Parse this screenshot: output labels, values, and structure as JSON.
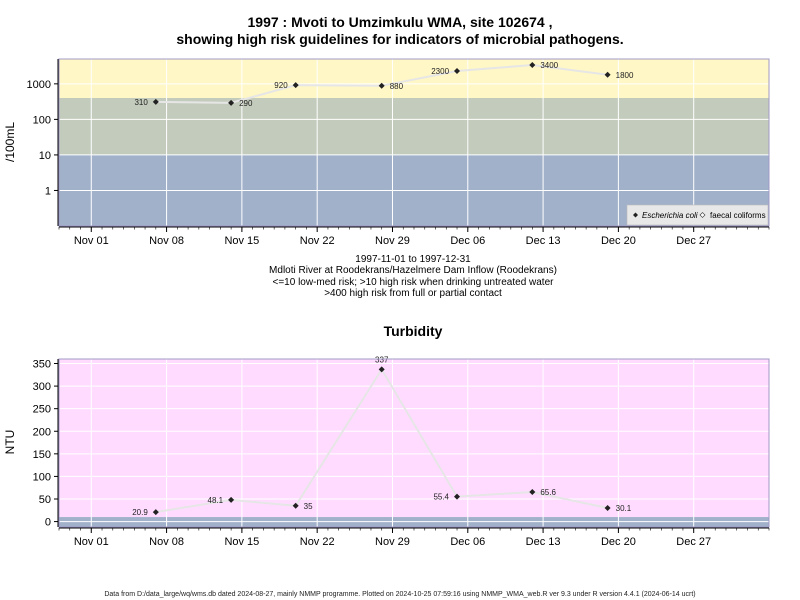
{
  "figure": {
    "title_line1": "1997 : Mvoti to Umzimkulu WMA, site 102674 ,",
    "title_line2": "showing high risk guidelines for indicators of microbial pathogens.",
    "footer": "Data from D:/data_large/wq/wms.db dated 2024-08-27, mainly NMMP programme. Plotted on 2024-10-25 07:59:16 using NMMP_WMA_web.R ver 9.3 under R version 4.4.1 (2024-06-14 ucrt)"
  },
  "colors": {
    "band_high": "#fff7c6",
    "band_mid": "#c3cbbc",
    "band_low": "#a1b1ca",
    "turbidity_bg": "#ffdcff",
    "turbidity_floor": "#a1b1ca",
    "grid": "#ffffff",
    "line": "#e6e6e6",
    "marker": "#222222",
    "plot_border": "#a098c6"
  },
  "chart_data": [
    {
      "type": "line",
      "title": "",
      "ylabel": "/100mL",
      "y_scale": "log",
      "ylim": [
        0.1,
        5000
      ],
      "y_ticks": [
        1,
        10,
        100,
        1000
      ],
      "y_tick_labels": [
        "1",
        "10",
        "100",
        "1000"
      ],
      "xlim": [
        "1997-10-29",
        "1998-01-03"
      ],
      "x_ticks": [
        "1997-11-01",
        "1997-11-08",
        "1997-11-15",
        "1997-11-22",
        "1997-11-29",
        "1997-12-06",
        "1997-12-13",
        "1997-12-20",
        "1997-12-27"
      ],
      "x_tick_labels": [
        "Nov 01",
        "Nov 08",
        "Nov 15",
        "Nov 22",
        "Nov 29",
        "Dec 06",
        "Dec 13",
        "Dec 20",
        "Dec 27"
      ],
      "risk_bands": [
        {
          "from": 0.1,
          "to": 10,
          "color": "#a1b1ca"
        },
        {
          "from": 10,
          "to": 400,
          "color": "#c3cbbc"
        },
        {
          "from": 400,
          "to": 5000,
          "color": "#fff7c6"
        }
      ],
      "series": [
        {
          "name": "Escherichia coli",
          "x": [
            "1997-11-07",
            "1997-11-14",
            "1997-11-20",
            "1997-11-28",
            "1997-12-05",
            "1997-12-12",
            "1997-12-19"
          ],
          "y": [
            310,
            290,
            920,
            880,
            2300,
            3400,
            1800
          ],
          "labels": [
            "310",
            "290",
            "920",
            "880",
            "2300",
            "3400",
            "1800"
          ],
          "label_side": [
            "left",
            "right",
            "left",
            "right",
            "left",
            "right",
            "right"
          ]
        },
        {
          "name": "faecal coliforms",
          "x": [],
          "y": []
        }
      ],
      "legend": "bottom-right",
      "notes": [
        "1997-11-01 to 1997-12-31",
        "Mdloti River at Roodekrans/Hazelmere Dam Inflow (Roodekrans)",
        "<=10 low-med risk; >10 high risk when drinking untreated water",
        ">400 high risk from full or partial contact"
      ]
    },
    {
      "type": "line",
      "title": "Turbidity",
      "ylabel": "NTU",
      "y_scale": "linear",
      "ylim": [
        -12,
        360
      ],
      "y_ticks": [
        0,
        50,
        100,
        150,
        200,
        250,
        300,
        350
      ],
      "y_tick_labels": [
        "0",
        "50",
        "100",
        "150",
        "200",
        "250",
        "300",
        "350"
      ],
      "floor_band": {
        "from": -12,
        "to": 10
      },
      "xlim": [
        "1997-10-29",
        "1998-01-03"
      ],
      "x_ticks": [
        "1997-11-01",
        "1997-11-08",
        "1997-11-15",
        "1997-11-22",
        "1997-11-29",
        "1997-12-06",
        "1997-12-13",
        "1997-12-20",
        "1997-12-27"
      ],
      "x_tick_labels": [
        "Nov 01",
        "Nov 08",
        "Nov 15",
        "Nov 22",
        "Nov 29",
        "Dec 06",
        "Dec 13",
        "Dec 20",
        "Dec 27"
      ],
      "series": [
        {
          "x": [
            "1997-11-07",
            "1997-11-14",
            "1997-11-20",
            "1997-11-28",
            "1997-12-05",
            "1997-12-12",
            "1997-12-19"
          ],
          "y": [
            20.9,
            48.1,
            35,
            337,
            55.4,
            65.6,
            30.1
          ],
          "labels": [
            "20.9",
            "48.1",
            "35",
            "337",
            "55.4",
            "65.6",
            "30.1"
          ],
          "label_side": [
            "left",
            "left",
            "right",
            "top",
            "left",
            "right",
            "right"
          ]
        }
      ]
    }
  ]
}
